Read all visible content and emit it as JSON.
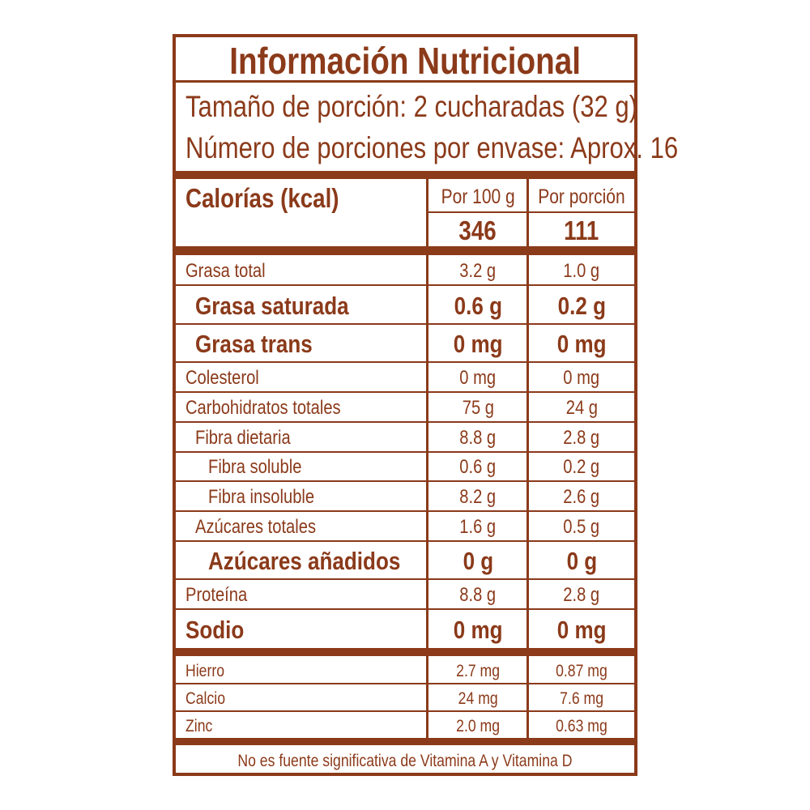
{
  "title": "Información Nutricional",
  "serving_size": "Tamaño de porción: 2 cucharadas (32 g)",
  "servings_per_container": "Número de porciones por envase: Aprox. 16",
  "calories": {
    "label": "Calorías (kcal)",
    "col1_header": "Por 100 g",
    "col2_header": "Por porción",
    "per_100g": "346",
    "per_serving": "111"
  },
  "nutrients": [
    {
      "label": "Grasa total",
      "per_100g": "3.2 g",
      "per_serving": "1.0 g",
      "indent": 0,
      "bold": false
    },
    {
      "label": "Grasa saturada",
      "per_100g": "0.6 g",
      "per_serving": "0.2 g",
      "indent": 1,
      "bold": true
    },
    {
      "label": "Grasa trans",
      "per_100g": "0 mg",
      "per_serving": "0 mg",
      "indent": 1,
      "bold": true
    },
    {
      "label": "Colesterol",
      "per_100g": "0 mg",
      "per_serving": "0 mg",
      "indent": 0,
      "bold": false
    },
    {
      "label": "Carbohidratos totales",
      "per_100g": "75 g",
      "per_serving": "24 g",
      "indent": 0,
      "bold": false
    },
    {
      "label": "Fibra dietaria",
      "per_100g": "8.8 g",
      "per_serving": "2.8 g",
      "indent": 1,
      "bold": false
    },
    {
      "label": "Fibra soluble",
      "per_100g": "0.6 g",
      "per_serving": "0.2 g",
      "indent": 2,
      "bold": false
    },
    {
      "label": "Fibra insoluble",
      "per_100g": "8.2 g",
      "per_serving": "2.6 g",
      "indent": 2,
      "bold": false
    },
    {
      "label": "Azúcares totales",
      "per_100g": "1.6 g",
      "per_serving": "0.5 g",
      "indent": 1,
      "bold": false
    },
    {
      "label": "Azúcares añadidos",
      "per_100g": "0 g",
      "per_serving": "0 g",
      "indent": 2,
      "bold": true
    },
    {
      "label": "Proteína",
      "per_100g": "8.8 g",
      "per_serving": "2.8 g",
      "indent": 0,
      "bold": false
    },
    {
      "label": "Sodio",
      "per_100g": "0 mg",
      "per_serving": "0 mg",
      "indent": 0,
      "bold": true
    }
  ],
  "minerals": [
    {
      "label": "Hierro",
      "per_100g": "2.7 mg",
      "per_serving": "0.87 mg"
    },
    {
      "label": "Calcio",
      "per_100g": "24 mg",
      "per_serving": "7.6 mg"
    },
    {
      "label": "Zinc",
      "per_100g": "2.0 mg",
      "per_serving": "0.63 mg"
    }
  ],
  "footnote": "No es fuente significativa de Vitamina A y Vitamina D",
  "colors": {
    "brand_brown": "#8b3a1a",
    "background": "#ffffff"
  }
}
